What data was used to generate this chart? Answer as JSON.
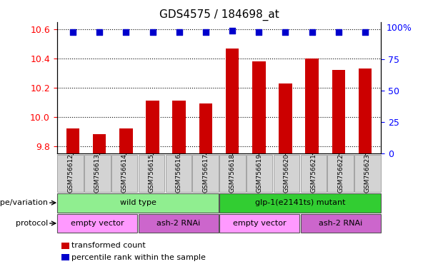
{
  "title": "GDS4575 / 184698_at",
  "samples": [
    "GSM756612",
    "GSM756613",
    "GSM756614",
    "GSM756615",
    "GSM756616",
    "GSM756617",
    "GSM756618",
    "GSM756619",
    "GSM756620",
    "GSM756621",
    "GSM756622",
    "GSM756623"
  ],
  "transformed_count": [
    9.92,
    9.88,
    9.92,
    10.11,
    10.11,
    10.09,
    10.47,
    10.38,
    10.23,
    10.4,
    10.32,
    10.33
  ],
  "percentile_rank": [
    97,
    97,
    97,
    97,
    97,
    97,
    98,
    97,
    97,
    97,
    97,
    97
  ],
  "ylim_left": [
    9.75,
    10.65
  ],
  "ylim_right": [
    0,
    105
  ],
  "yticks_left": [
    9.8,
    10.0,
    10.2,
    10.4,
    10.6
  ],
  "yticks_right": [
    0,
    25,
    50,
    75
  ],
  "bar_color": "#cc0000",
  "dot_color": "#0000cc",
  "genotype_labels": [
    {
      "text": "wild type",
      "start": 0,
      "end": 6,
      "color": "#90ee90"
    },
    {
      "text": "glp-1(e2141ts) mutant",
      "start": 6,
      "end": 12,
      "color": "#32cd32"
    }
  ],
  "protocol_labels": [
    {
      "text": "empty vector",
      "start": 0,
      "end": 3,
      "color": "#ff99ff"
    },
    {
      "text": "ash-2 RNAi",
      "start": 3,
      "end": 6,
      "color": "#cc66cc"
    },
    {
      "text": "empty vector",
      "start": 6,
      "end": 9,
      "color": "#ff99ff"
    },
    {
      "text": "ash-2 RNAi",
      "start": 9,
      "end": 12,
      "color": "#cc66cc"
    }
  ],
  "genotype_row_label": "genotype/variation",
  "protocol_row_label": "protocol",
  "legend_items": [
    {
      "color": "#cc0000",
      "label": "transformed count"
    },
    {
      "color": "#0000cc",
      "label": "percentile rank within the sample"
    }
  ],
  "bar_width": 0.5,
  "dot_size": 40,
  "title_fontsize": 11,
  "tick_fontsize": 9,
  "label_fontsize": 8
}
